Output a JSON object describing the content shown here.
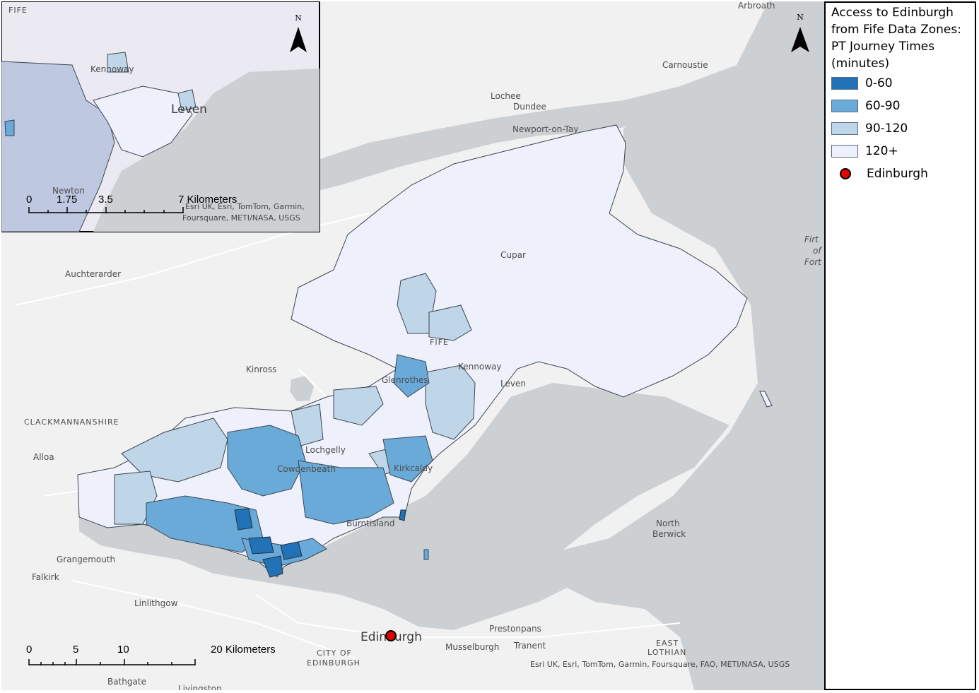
{
  "legend": {
    "title": "Access to Edinburgh\nfrom Fife Data Zones:\nPT Journey Times\n(minutes)",
    "classes": [
      {
        "label": "0-60",
        "color": "#2272b8"
      },
      {
        "label": "60-90",
        "color": "#6aaad8"
      },
      {
        "label": "90-120",
        "color": "#bfd5e8"
      },
      {
        "label": "120+",
        "color": "#eef1fb"
      }
    ],
    "point_label": "Edinburgh"
  },
  "colors": {
    "land": "#f1f1f1",
    "sea": "#cdd0d3",
    "boundary": "#3c4550",
    "edinburgh_dot": "#e00000"
  },
  "main_map": {
    "north_label": "N",
    "place_labels": {
      "arbroath": "Arbroath",
      "carnoustie": "Carnoustie",
      "lochee": "Lochee",
      "dundee": "Dundee",
      "newport": "Newport-on-Tay",
      "cupar": "Cupar",
      "auchterarder": "Auchterarder",
      "fife": "FIFE",
      "kinross": "Kinross",
      "kennoway": "Kennoway",
      "leven": "Leven",
      "glenrothes": "Glenrothes",
      "clackmannanshire": "CLACKMANNANSHIRE",
      "alloa": "Alloa",
      "lochgelly": "Lochgelly",
      "cowdenbeath": "Cowdenbeath",
      "kirkcaldy": "Kirkcaldy",
      "burntisland": "Burntisland",
      "north_berwick_1": "North",
      "north_berwick_2": "Berwick",
      "grangemouth": "Grangemouth",
      "falkirk": "Falkirk",
      "linlithgow": "Linlithgow",
      "prestonpans": "Prestonpans",
      "tranent": "Tranent",
      "musselburgh": "Musselburgh",
      "edinburgh": "Edinburgh",
      "city_of_edinburgh_1": "CITY OF",
      "city_of_edinburgh_2": "EDINBURGH",
      "east_lothian_1": "EAST",
      "east_lothian_2": "LOTHIAN",
      "bathgate": "Bathgate",
      "livingston": "Livingston",
      "firth_1": "Firt",
      "firth_2": "of",
      "firth_3": "Fort"
    },
    "scale_bar": {
      "ticks": [
        "0",
        "5",
        "10"
      ],
      "end_label": "20 Kilometers"
    },
    "attribution": "Esri UK, Esri, TomTom, Garmin, Foursquare, FAO, METI/NASA, USGS"
  },
  "inset_map": {
    "north_label": "N",
    "place_labels": {
      "fife": "FIFE",
      "kennoway": "Kennoway",
      "leven": "Leven",
      "newton": "Newton"
    },
    "scale_bar": {
      "ticks": [
        "0",
        "1.75",
        "3.5"
      ],
      "end_label": "7 Kilometers"
    },
    "attribution_1": "Esri UK, Esri, TomTom, Garmin,",
    "attribution_2": "Foursquare, METI/NASA, USGS"
  }
}
